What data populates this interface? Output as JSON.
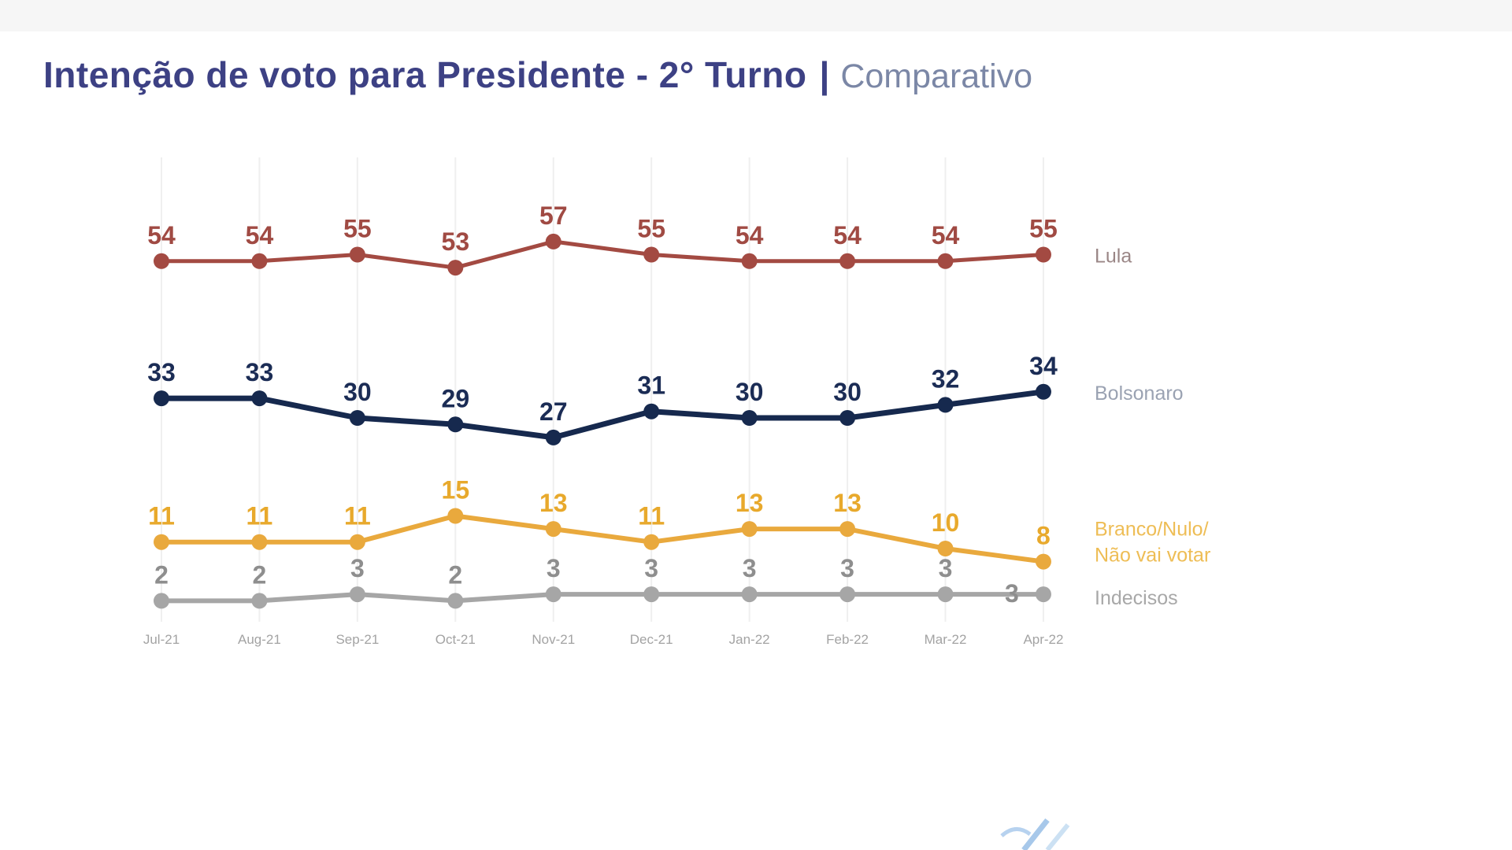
{
  "header": {
    "title": "Intenção de voto para Presidente - 2° Turno",
    "separator": "|",
    "subtitle": "Comparativo"
  },
  "colors": {
    "title": "#3d4184",
    "subtitle": "#7b87a6",
    "gridline": "#efefef",
    "x_tick": "#a3a3a3",
    "top_band": "#f6f6f6",
    "watermark_blue": "#8ab6e3"
  },
  "chart_data": {
    "type": "line",
    "title": "Intenção de voto para Presidente - 2° Turno | Comparativo",
    "x": [
      "Jul-21",
      "Aug-21",
      "Sep-21",
      "Oct-21",
      "Nov-21",
      "Dec-21",
      "Jan-22",
      "Feb-22",
      "Mar-22",
      "Apr-22"
    ],
    "xlabel": "",
    "ylabel": "",
    "ylim": [
      0,
      70
    ],
    "grid": "vertical-only",
    "legend_position": "right",
    "data_labels": "above-points",
    "series": [
      {
        "name": "Lula",
        "color": "#a34a42",
        "value_color": "#a04a43",
        "label_color": "#9a8686",
        "line_width": 5,
        "values": [
          54,
          54,
          55,
          53,
          57,
          55,
          54,
          54,
          54,
          55
        ],
        "legend_lines": [
          "Lula"
        ],
        "legend_offsets": [
          10
        ],
        "label_offsets": {}
      },
      {
        "name": "Bolsonaro",
        "color": "#16294e",
        "value_color": "#1b2c55",
        "label_color": "#9aa2b2",
        "line_width": 7,
        "values": [
          33,
          33,
          30,
          29,
          27,
          31,
          30,
          30,
          32,
          34
        ],
        "legend_lines": [
          "Bolsonaro"
        ],
        "legend_offsets": [
          10
        ],
        "label_offsets": {}
      },
      {
        "name": "Branco/Nulo/Não vai votar",
        "color": "#e9a93d",
        "value_color": "#e8a92c",
        "label_color": "#eebd55",
        "line_width": 6,
        "values": [
          11,
          11,
          11,
          15,
          13,
          11,
          13,
          13,
          10,
          8
        ],
        "legend_lines": [
          "Branco/Nulo/",
          "Não vai votar"
        ],
        "legend_offsets": [
          -33,
          0
        ],
        "label_offsets": {}
      },
      {
        "name": "Indecisos",
        "color": "#a6a6a6",
        "value_color": "#8e8e8e",
        "label_color": "#a8a8a8",
        "line_width": 6,
        "values": [
          2,
          2,
          3,
          2,
          3,
          3,
          3,
          3,
          3,
          3
        ],
        "legend_lines": [
          "Indecisos"
        ],
        "legend_offsets": [
          13
        ],
        "label_offsets": {
          "9": [
            -40,
            32
          ]
        }
      }
    ]
  }
}
